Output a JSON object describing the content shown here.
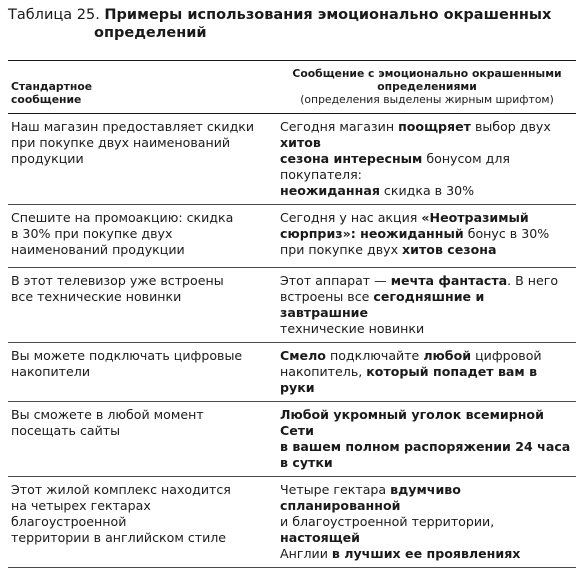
{
  "caption": {
    "label": "Таблица 25.",
    "title_line1": "Примеры использования эмоционально окрашенных",
    "title_line2": "определений"
  },
  "header": {
    "col1_line1": "Стандартное",
    "col1_line2": "сообщение",
    "col2_line1": "Сообщение с эмоционально окрашенными",
    "col2_line2": "определениями",
    "col2_note": "(определения выделены жирным шрифтом)"
  },
  "rows": [
    {
      "std": [
        "Наш магазин предоставляет скидки",
        "при покупке двух наименований",
        "продукции"
      ],
      "emo": [
        [
          [
            "Сегодня магазин ",
            false
          ],
          [
            "поощряет",
            true
          ],
          [
            " выбор двух ",
            false
          ],
          [
            "хитов",
            true
          ]
        ],
        [
          [
            "сезона интересным",
            true
          ],
          [
            " бонусом для покупателя:",
            false
          ]
        ],
        [
          [
            "неожиданная",
            true
          ],
          [
            " скидка в 30%",
            false
          ]
        ]
      ]
    },
    {
      "std": [
        "Спешите на промоакцию: скидка",
        "в 30% при покупке двух",
        "наименований продукции"
      ],
      "emo": [
        [
          [
            "Сегодня у нас акция ",
            false
          ],
          [
            "«Неотразимый",
            true
          ]
        ],
        [
          [
            "сюрприз»: неожиданный",
            true
          ],
          [
            " бонус в 30%",
            false
          ]
        ],
        [
          [
            "при покупке двух ",
            false
          ],
          [
            "хитов сезона",
            true
          ]
        ]
      ]
    },
    {
      "std": [
        "В этот телевизор уже встроены",
        "все технические новинки"
      ],
      "emo": [
        [
          [
            "Этот аппарат — ",
            false
          ],
          [
            "мечта фантаста",
            true
          ],
          [
            ". В него",
            false
          ]
        ],
        [
          [
            "встроены все ",
            false
          ],
          [
            "сегодняшние и завтрашние",
            true
          ]
        ],
        [
          [
            "технические новинки",
            false
          ]
        ]
      ]
    },
    {
      "std": [
        "Вы можете подключать цифровые",
        "накопители"
      ],
      "emo": [
        [
          [
            "Смело",
            true
          ],
          [
            " подключайте ",
            false
          ],
          [
            "любой",
            true
          ],
          [
            " цифровой",
            false
          ]
        ],
        [
          [
            "накопитель, ",
            false
          ],
          [
            "который попадет вам в руки",
            true
          ]
        ]
      ]
    },
    {
      "std": [
        "Вы сможете в любой момент",
        "посещать сайты"
      ],
      "emo": [
        [
          [
            "Любой укромный уголок всемирной Сети",
            true
          ]
        ],
        [
          [
            "в вашем полном распоряжении 24 часа",
            true
          ]
        ],
        [
          [
            "в сутки",
            true
          ]
        ]
      ]
    },
    {
      "std": [
        "Этот жилой комплекс находится",
        "на четырех гектарах благоустроенной",
        "территории в английском стиле"
      ],
      "emo": [
        [
          [
            "Четыре гектара ",
            false
          ],
          [
            "вдумчиво спланированной",
            true
          ]
        ],
        [
          [
            "и благоустроенной территории, ",
            false
          ],
          [
            "настоящей",
            true
          ]
        ],
        [
          [
            "Англии ",
            false
          ],
          [
            "в лучших ее проявлениях",
            true
          ]
        ]
      ]
    }
  ]
}
